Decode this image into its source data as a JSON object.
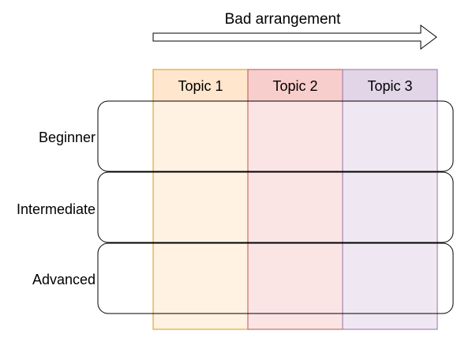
{
  "title": "Bad arrangement",
  "colors": {
    "topic1_header": "#ffe6cc",
    "topic1_border": "#d79b00",
    "topic1_body": "#fff2e3",
    "topic2_header": "#f8cecc",
    "topic2_border": "#b85450",
    "topic2_body": "#fbe4e4",
    "topic3_header": "#e1d5e7",
    "topic3_border": "#9673a6",
    "topic3_body": "#efe7f2",
    "row_border": "#000000",
    "arrow": "#000000"
  },
  "columns": [
    {
      "label": "Topic 1"
    },
    {
      "label": "Topic 2"
    },
    {
      "label": "Topic 3"
    }
  ],
  "rows": [
    {
      "label": "Beginner"
    },
    {
      "label": "Intermediate"
    },
    {
      "label": "Advanced"
    }
  ]
}
